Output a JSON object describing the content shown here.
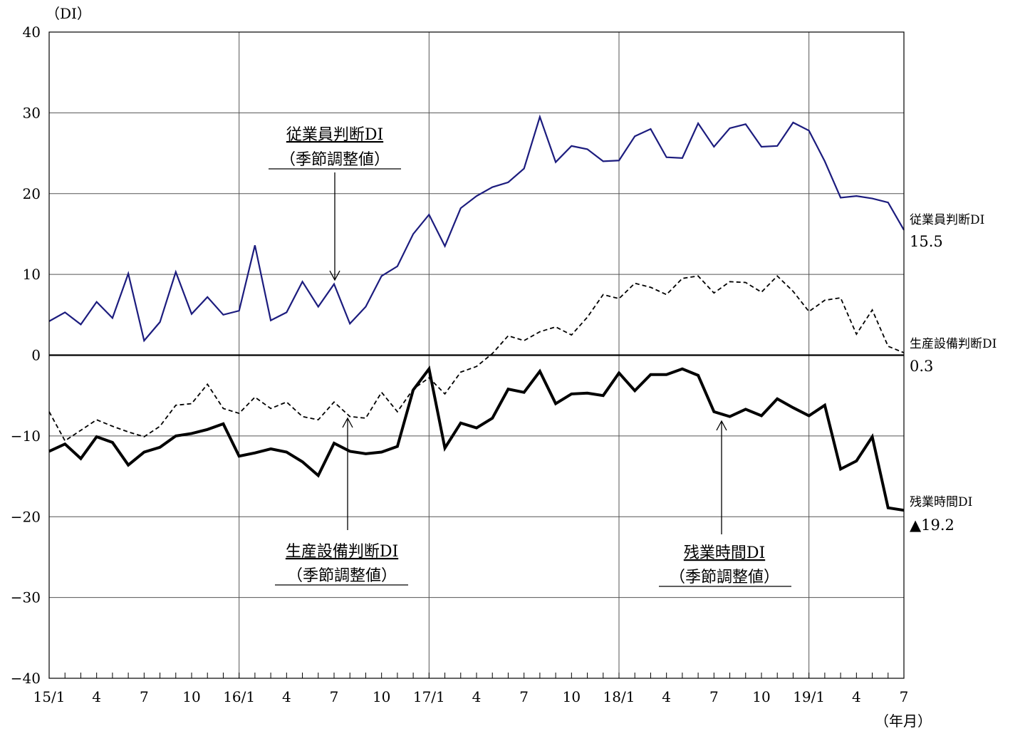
{
  "chart_data": {
    "type": "line",
    "y_unit_label": "（DI）",
    "x_unit_label": "（年月）",
    "ylim": [
      -40,
      40
    ],
    "y_ticks": [
      40,
      30,
      20,
      10,
      0,
      -10,
      -20,
      -30,
      -40
    ],
    "y_tick_labels": [
      "40",
      "30",
      "20",
      "10",
      "0",
      "−10",
      "−20",
      "−30",
      "−40"
    ],
    "x_tick_labels": [
      {
        "index": 0,
        "label": "15/1"
      },
      {
        "index": 3,
        "label": "4"
      },
      {
        "index": 6,
        "label": "7"
      },
      {
        "index": 9,
        "label": "10"
      },
      {
        "index": 12,
        "label": "16/1"
      },
      {
        "index": 15,
        "label": "4"
      },
      {
        "index": 18,
        "label": "7"
      },
      {
        "index": 21,
        "label": "10"
      },
      {
        "index": 24,
        "label": "17/1"
      },
      {
        "index": 27,
        "label": "4"
      },
      {
        "index": 30,
        "label": "7"
      },
      {
        "index": 33,
        "label": "10"
      },
      {
        "index": 36,
        "label": "18/1"
      },
      {
        "index": 39,
        "label": "4"
      },
      {
        "index": 42,
        "label": "7"
      },
      {
        "index": 45,
        "label": "10"
      },
      {
        "index": 48,
        "label": "19/1"
      },
      {
        "index": 51,
        "label": "4"
      },
      {
        "index": 54,
        "label": "7"
      }
    ],
    "x_start": "2015-01",
    "x_end": "2019-07",
    "year_gridline_indices": [
      12,
      24,
      36,
      48
    ],
    "grid": true,
    "series": [
      {
        "key": "employees",
        "values": [
          4.2,
          5.3,
          3.8,
          6.6,
          4.6,
          10.1,
          1.8,
          4.1,
          10.3,
          5.1,
          7.2,
          5.0,
          5.5,
          13.6,
          4.3,
          5.3,
          9.1,
          6.0,
          8.8,
          3.9,
          6.0,
          9.8,
          11.0,
          15.0,
          17.4,
          13.5,
          18.2,
          19.7,
          20.8,
          21.4,
          23.1,
          29.5,
          23.9,
          25.9,
          25.5,
          24.0,
          24.1,
          27.1,
          28.0,
          24.5,
          24.4,
          28.7,
          25.8,
          28.1,
          28.6,
          25.8,
          25.9,
          28.8,
          27.8,
          24.0,
          19.5,
          19.7,
          19.4,
          18.9,
          15.5
        ],
        "color": "#1c1c7e",
        "style": "solid",
        "width": 2.2
      },
      {
        "key": "equipment",
        "values": [
          -7.0,
          -10.6,
          -9.3,
          -8.0,
          -8.8,
          -9.5,
          -10.1,
          -8.8,
          -6.2,
          -6.0,
          -3.6,
          -6.6,
          -7.2,
          -5.2,
          -6.6,
          -5.8,
          -7.6,
          -8.0,
          -5.8,
          -7.6,
          -7.8,
          -4.6,
          -7.0,
          -4.2,
          -2.8,
          -4.8,
          -2.1,
          -1.4,
          0.2,
          2.4,
          1.8,
          2.9,
          3.5,
          2.5,
          4.7,
          7.5,
          7.0,
          8.9,
          8.4,
          7.5,
          9.5,
          9.8,
          7.7,
          9.1,
          9.0,
          7.8,
          9.8,
          7.9,
          5.4,
          6.8,
          7.1,
          2.6,
          5.6,
          1.1,
          0.3
        ],
        "color": "#000000",
        "style": "dashed",
        "width": 1.8
      },
      {
        "key": "overtime",
        "values": [
          -11.9,
          -11.0,
          -12.8,
          -10.1,
          -10.8,
          -13.6,
          -12.0,
          -11.4,
          -10.0,
          -9.7,
          -9.2,
          -8.5,
          -12.5,
          -12.1,
          -11.6,
          -12.0,
          -13.2,
          -14.9,
          -10.9,
          -11.9,
          -12.2,
          -12.0,
          -11.3,
          -4.3,
          -1.7,
          -11.5,
          -8.4,
          -9.0,
          -7.8,
          -4.2,
          -4.6,
          -2.0,
          -6.0,
          -4.8,
          -4.7,
          -5.0,
          -2.2,
          -4.4,
          -2.4,
          -2.4,
          -1.7,
          -2.5,
          -7.0,
          -7.6,
          -6.7,
          -7.5,
          -5.4,
          -6.5,
          -7.5,
          -6.2,
          -14.1,
          -13.1,
          -10.1,
          -18.9,
          -19.2
        ],
        "color": "#000000",
        "style": "solid",
        "width": 4
      }
    ],
    "end_labels": {
      "employees": {
        "name": "従業員判断DI",
        "value": "15.5"
      },
      "equipment": {
        "name": "生産設備判断DI",
        "value": "0.3"
      },
      "overtime": {
        "name": "残業時間DI",
        "value": "▲19.2"
      }
    },
    "annotations": {
      "employees": {
        "line1": "従業員判断DI",
        "line2": "（季節調整値）"
      },
      "equipment": {
        "line1": "生産設備判断DI",
        "line2": "（季節調整値）"
      },
      "overtime": {
        "line1": "残業時間DI",
        "line2": "（季節調整値）"
      }
    }
  }
}
